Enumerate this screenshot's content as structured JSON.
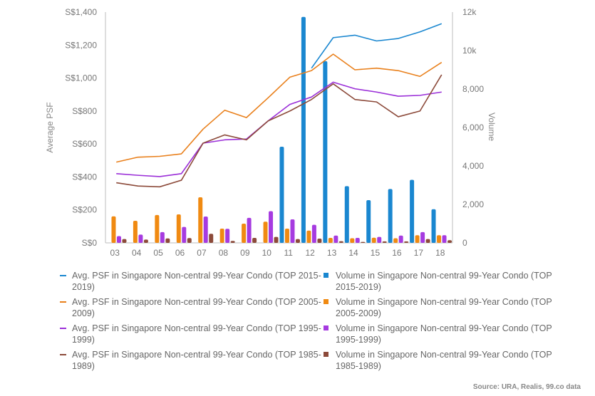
{
  "chart_data": {
    "type": "bar+line",
    "categories": [
      "03",
      "04",
      "05",
      "06",
      "07",
      "08",
      "09",
      "10",
      "11",
      "12",
      "13",
      "14",
      "15",
      "16",
      "17",
      "18"
    ],
    "left_axis": {
      "label": "Average PSF",
      "ticks": [
        "S$0",
        "S$200",
        "S$400",
        "S$600",
        "S$800",
        "S$1,000",
        "S$1,200",
        "S$1,400"
      ],
      "range": [
        0,
        1400
      ]
    },
    "right_axis": {
      "label": "Volume",
      "ticks": [
        "0",
        "2,000",
        "4,000",
        "6,000",
        "8,000",
        "10k",
        "12k"
      ],
      "range": [
        0,
        12000
      ]
    },
    "line_series": [
      {
        "name": "Avg. PSF in Singapore Non-central 99-Year Condo (TOP 2015-2019)",
        "color": "#1a87d0",
        "values": [
          null,
          null,
          null,
          null,
          null,
          null,
          null,
          null,
          null,
          1060,
          1245,
          1260,
          1225,
          1240,
          1280,
          1330
        ]
      },
      {
        "name": "Avg. PSF in Singapore Non-central 99-Year Condo (TOP 2005-2009)",
        "color": "#e9801c",
        "values": [
          490,
          520,
          525,
          540,
          690,
          805,
          760,
          880,
          1005,
          1045,
          1145,
          1050,
          1060,
          1045,
          1010,
          1095
        ]
      },
      {
        "name": "Avg. PSF in Singapore Non-central 99-Year Condo (TOP 1995-1999)",
        "color": "#9b2fd8",
        "values": [
          420,
          410,
          402,
          420,
          605,
          625,
          630,
          740,
          840,
          885,
          975,
          935,
          915,
          890,
          895,
          915
        ]
      },
      {
        "name": "Avg. PSF in Singapore Non-central 99-Year Condo (TOP 1985-1989)",
        "color": "#8c4a3a",
        "values": [
          365,
          345,
          340,
          380,
          605,
          655,
          625,
          740,
          800,
          870,
          965,
          870,
          855,
          765,
          800,
          1020
        ]
      }
    ],
    "bar_series": [
      {
        "name": "Volume in Singapore Non-central 99-Year Condo (TOP 2015-2019)",
        "color": "#1a87d0",
        "values": [
          0,
          0,
          0,
          0,
          0,
          0,
          0,
          0,
          5000,
          11750,
          9450,
          2950,
          2220,
          2800,
          3280,
          1750
        ]
      },
      {
        "name": "Volume in Singapore Non-central 99-Year Condo (TOP 2005-2009)",
        "color": "#f08a12",
        "values": [
          1380,
          1150,
          1450,
          1480,
          2370,
          740,
          1000,
          1100,
          740,
          640,
          260,
          240,
          270,
          240,
          400,
          400
        ]
      },
      {
        "name": "Volume in Singapore Non-central 99-Year Condo (TOP 1995-1999)",
        "color": "#a63be0",
        "values": [
          350,
          430,
          560,
          830,
          1370,
          730,
          1300,
          1650,
          1220,
          940,
          380,
          260,
          310,
          380,
          560,
          400
        ]
      },
      {
        "name": "Volume in Singapore Non-central 99-Year Condo (TOP 1985-1989)",
        "color": "#8c4a3a",
        "values": [
          200,
          170,
          230,
          250,
          470,
          100,
          260,
          310,
          200,
          220,
          90,
          50,
          80,
          80,
          200,
          140
        ]
      }
    ]
  },
  "source": "Source: URA, Realis, 99.co data"
}
